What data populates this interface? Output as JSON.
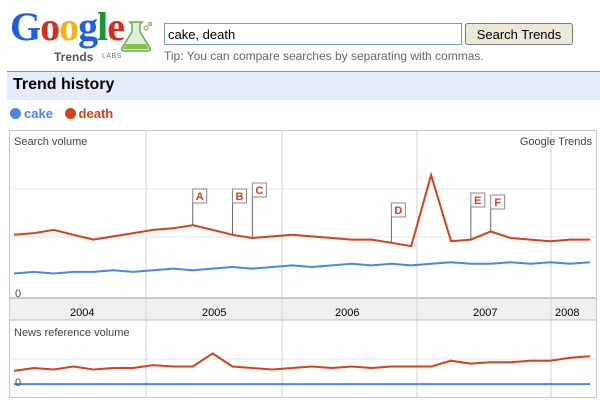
{
  "logo": {
    "letters": [
      "G",
      "o",
      "o",
      "g",
      "l",
      "e"
    ],
    "colors": [
      "#1e5ee6",
      "#d62d20",
      "#f2b50f",
      "#1e5ee6",
      "#179a2e",
      "#d62d20"
    ],
    "sub": "Trends",
    "labs": "LABS"
  },
  "search": {
    "value": "cake, death",
    "button": "Search Trends",
    "tip": "Tip: You can compare searches by separating with commas."
  },
  "section": {
    "title": "Trend history"
  },
  "legend": [
    {
      "label": "cake",
      "color": "#4a86e8"
    },
    {
      "label": "death",
      "color": "#d6401a"
    }
  ],
  "chart": {
    "search_volume_label": "Search volume",
    "brand_label": "Google Trends",
    "news_label": "News reference volume",
    "zero": "0",
    "years": [
      "2004",
      "2005",
      "2006",
      "2007",
      "2008"
    ],
    "annotations": [
      "A",
      "B",
      "C",
      "D",
      "E",
      "F"
    ]
  },
  "chart_data": {
    "type": "line",
    "x_label": "",
    "categories": [
      "2004",
      "2005",
      "2006",
      "2007",
      "2008"
    ],
    "series": [
      {
        "name": "cake",
        "color": "#4a86e8",
        "search_volume": [
          0.9,
          1.0,
          0.9,
          1.0,
          1.0,
          1.1,
          1.0,
          1.1,
          1.2,
          1.1,
          1.2,
          1.3,
          1.2,
          1.3,
          1.4,
          1.3,
          1.4,
          1.5,
          1.4,
          1.5,
          1.4,
          1.5,
          1.6,
          1.5,
          1.5,
          1.6,
          1.5,
          1.6,
          1.5,
          1.6
        ],
        "news_volume": [
          0.2,
          0.2,
          0.2,
          0.2,
          0.2,
          0.2,
          0.2,
          0.2,
          0.2,
          0.2,
          0.2,
          0.2,
          0.2,
          0.2,
          0.2,
          0.2,
          0.2,
          0.2,
          0.2,
          0.2,
          0.2,
          0.2,
          0.2,
          0.2,
          0.2,
          0.2,
          0.2,
          0.2,
          0.2,
          0.2
        ]
      },
      {
        "name": "death",
        "color": "#d6401a",
        "search_volume": [
          3.3,
          3.4,
          3.6,
          3.3,
          3.0,
          3.2,
          3.4,
          3.6,
          3.7,
          3.9,
          3.6,
          3.3,
          3.1,
          3.2,
          3.3,
          3.2,
          3.1,
          3.0,
          3.0,
          2.8,
          2.6,
          7.0,
          2.9,
          3.0,
          3.5,
          3.1,
          3.0,
          2.9,
          3.0,
          3.0
        ],
        "news_volume": [
          1.1,
          1.3,
          1.2,
          1.4,
          1.2,
          1.3,
          1.3,
          1.5,
          1.4,
          1.4,
          2.3,
          1.4,
          1.3,
          1.2,
          1.3,
          1.4,
          1.3,
          1.4,
          1.3,
          1.4,
          1.4,
          1.4,
          1.8,
          1.6,
          1.7,
          1.7,
          1.8,
          1.8,
          2.0,
          2.1
        ]
      }
    ],
    "annotations": [
      {
        "label": "A",
        "x_index": 9
      },
      {
        "label": "B",
        "x_index": 11
      },
      {
        "label": "C",
        "x_index": 12
      },
      {
        "label": "D",
        "x_index": 19
      },
      {
        "label": "E",
        "x_index": 23
      },
      {
        "label": "F",
        "x_index": 24
      }
    ],
    "grid": true
  }
}
